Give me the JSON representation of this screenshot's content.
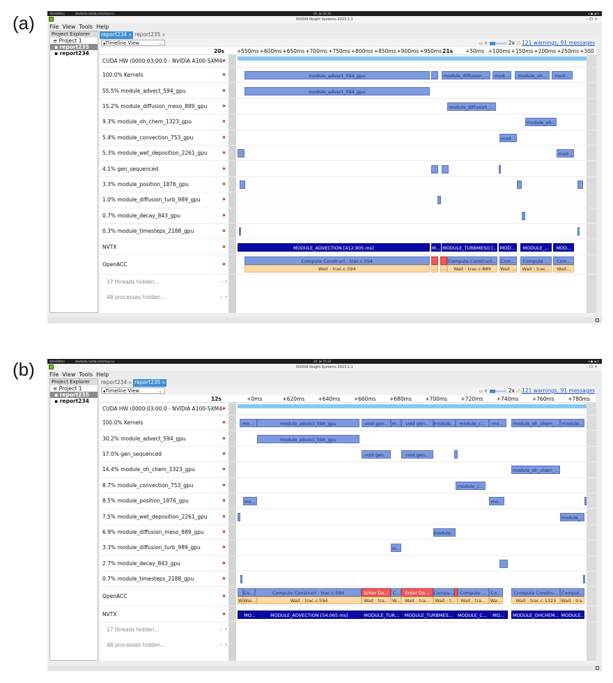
{
  "panels": [
    {
      "label": "(a)",
      "system_bar": {
        "activities": "Aktivitäten",
        "url": "devtools.nvidia.com/nsys-ui",
        "clock": "20. Jul 15:32",
        "window_title": "NVIDIA Nsight Systems 2023.1.1"
      },
      "menu": [
        "File",
        "View",
        "Tools",
        "Help"
      ],
      "explorer": {
        "tab": "Project Explorer",
        "items": [
          "Project 1",
          "report235",
          "report234"
        ],
        "selected": 1
      },
      "report_tabs": [
        {
          "label": "report234",
          "active": true
        },
        {
          "label": "report235",
          "active": false
        }
      ],
      "view": "Timeline View",
      "zoom": "2x",
      "warnings": "121 warnings, 91 messages",
      "ruler": [
        {
          "text": "20s",
          "major": true
        },
        {
          "text": "+550ms"
        },
        {
          "text": "+600ms"
        },
        {
          "text": "+650ms"
        },
        {
          "text": "+700ms"
        },
        {
          "text": "+750ms"
        },
        {
          "text": "+800ms"
        },
        {
          "text": "+850ms"
        },
        {
          "text": "+900ms"
        },
        {
          "text": "+950ms"
        },
        {
          "text": "21s",
          "major": true
        },
        {
          "text": "+50ms"
        },
        {
          "text": "+100ms"
        },
        {
          "text": "+150ms"
        },
        {
          "text": "+200ms"
        },
        {
          "text": "+250ms"
        },
        {
          "text": "+300"
        }
      ],
      "rows": [
        {
          "label": "CUDA HW (0000:03:00.0 - NVIDIA A100-SXM4-"
        },
        {
          "label": "100.0% Kernels",
          "bars": [
            {
              "s": 0.02,
              "e": 0.55,
              "t": "module_advect_594_gpu",
              "c": "k"
            },
            {
              "s": 0.555,
              "e": 0.575,
              "t": "",
              "c": "k"
            },
            {
              "s": 0.585,
              "e": 0.725,
              "t": "module_diffusion_...",
              "c": "k"
            },
            {
              "s": 0.73,
              "e": 0.785,
              "t": "mod...",
              "c": "k"
            },
            {
              "s": 0.795,
              "e": 0.895,
              "t": "module_oh...",
              "c": "k"
            },
            {
              "s": 0.9,
              "e": 0.96,
              "t": "mod...",
              "c": "k"
            }
          ]
        },
        {
          "label": "55.5% module_advect_594_gpu",
          "bars": [
            {
              "s": 0.02,
              "e": 0.55,
              "t": "module_advect_594_gpu",
              "c": "k"
            }
          ]
        },
        {
          "label": "15.2% module_diffusion_meso_889_gpu",
          "bars": [
            {
              "s": 0.6,
              "e": 0.74,
              "t": "module_diffusion_...",
              "c": "k"
            }
          ]
        },
        {
          "label": "9.3% module_oh_chem_1323_gpu",
          "bars": [
            {
              "s": 0.825,
              "e": 0.915,
              "t": "module_oh...",
              "c": "k"
            }
          ]
        },
        {
          "label": "5.4% module_convection_753_gpu",
          "bars": [
            {
              "s": 0.75,
              "e": 0.8,
              "t": "mod...",
              "c": "k"
            }
          ]
        },
        {
          "label": "5.3% module_wet_deposition_2261_gpu",
          "bars": [
            {
              "s": 0.0,
              "e": 0.02,
              "t": "",
              "c": "k"
            },
            {
              "s": 0.915,
              "e": 0.965,
              "t": "mod...",
              "c": "k"
            }
          ]
        },
        {
          "label": "4.1% gen_sequenced",
          "bars": [
            {
              "s": 0.555,
              "e": 0.575,
              "t": "",
              "c": "k"
            },
            {
              "s": 0.585,
              "e": 0.605,
              "t": "",
              "c": "k"
            },
            {
              "s": 0.748,
              "e": 0.752,
              "t": "",
              "c": "k"
            }
          ]
        },
        {
          "label": "3.3% module_position_1876_gpu",
          "bars": [
            {
              "s": 0.005,
              "e": 0.022,
              "t": "",
              "c": "k"
            },
            {
              "s": 0.8,
              "e": 0.815,
              "t": "",
              "c": "k"
            },
            {
              "s": 0.975,
              "e": 0.99,
              "t": "",
              "c": "k"
            }
          ]
        },
        {
          "label": "1.0% module_diffusion_turb_989_gpu",
          "bars": [
            {
              "s": 0.572,
              "e": 0.583,
              "t": "",
              "c": "k"
            }
          ]
        },
        {
          "label": "0.7% module_decay_843_gpu",
          "bars": [
            {
              "s": 0.815,
              "e": 0.825,
              "t": "",
              "c": "k"
            }
          ]
        },
        {
          "label": "0.3% module_timesteps_2188_gpu",
          "bars": [
            {
              "s": 0.004,
              "e": 0.008,
              "t": "",
              "c": "k"
            },
            {
              "s": 0.975,
              "e": 0.979,
              "t": "",
              "c": "k"
            }
          ]
        },
        {
          "label": "NVTX",
          "bars": [
            {
              "s": 0.0,
              "e": 0.55,
              "t": "MODULE_ADVECTION [412.905 ms]",
              "c": "nvtx"
            },
            {
              "s": 0.555,
              "e": 0.583,
              "t": "M...",
              "c": "nvtx"
            },
            {
              "s": 0.585,
              "e": 0.745,
              "t": "MODULE_TURBMESO [...",
              "c": "nvtx"
            },
            {
              "s": 0.748,
              "e": 0.8,
              "t": "MOD...",
              "c": "nvtx"
            },
            {
              "s": 0.81,
              "e": 0.9,
              "t": "MODULE_...",
              "c": "nvtx"
            },
            {
              "s": 0.905,
              "e": 0.965,
              "t": "MOD...",
              "c": "nvtx"
            }
          ]
        },
        {
          "label": "OpenACC",
          "bars": [
            {
              "s": 0.02,
              "e": 0.55,
              "t": "Compute Construct : trac.c:594",
              "c": "comp"
            },
            {
              "s": 0.555,
              "e": 0.575,
              "t": "",
              "c": "red"
            },
            {
              "s": 0.58,
              "e": 0.6,
              "t": "",
              "c": "red"
            },
            {
              "s": 0.6,
              "e": 0.745,
              "t": "Compute Construct...",
              "c": "comp"
            },
            {
              "s": 0.75,
              "e": 0.8,
              "t": "Com...",
              "c": "comp"
            },
            {
              "s": 0.81,
              "e": 0.9,
              "t": "Compute ...",
              "c": "comp"
            },
            {
              "s": 0.905,
              "e": 0.965,
              "t": "Com...",
              "c": "comp"
            }
          ],
          "wait": [
            {
              "s": 0.02,
              "e": 0.55,
              "t": "Wait : trac.c:594",
              "c": "wait"
            },
            {
              "s": 0.555,
              "e": 0.575,
              "t": "...",
              "c": "wait"
            },
            {
              "s": 0.58,
              "e": 0.6,
              "t": "...",
              "c": "wait"
            },
            {
              "s": 0.6,
              "e": 0.745,
              "t": "Wait : trac.c:889",
              "c": "wait"
            },
            {
              "s": 0.75,
              "e": 0.8,
              "t": "Wait ...",
              "c": "wait"
            },
            {
              "s": 0.81,
              "e": 0.9,
              "t": "Wait : trac...",
              "c": "wait"
            },
            {
              "s": 0.905,
              "e": 0.965,
              "t": "Wait...",
              "c": "wait"
            }
          ]
        },
        {
          "label": "17 threads hidden...",
          "dim": true
        },
        {
          "label": "48 processes hidden...",
          "dim": true
        }
      ]
    },
    {
      "label": "(b)",
      "system_bar": {
        "activities": "Aktivitäten",
        "url": "devtools.nvidia.com/nsys-ui",
        "clock": "20. Jul 15:33",
        "window_title": "NVIDIA Nsight Systems 2023.1.1"
      },
      "menu": [
        "File",
        "View",
        "Tools",
        "Help"
      ],
      "explorer": {
        "tab": "Project Explorer",
        "items": [
          "Project 1",
          "report235",
          "report234"
        ],
        "selected": 1
      },
      "report_tabs": [
        {
          "label": "report234",
          "active": false
        },
        {
          "label": "report235",
          "active": true
        }
      ],
      "view": "Timeline View",
      "zoom": "2x",
      "warnings": "121 warnings, 91 messages",
      "ruler": [
        {
          "text": "12s",
          "major": true
        },
        {
          "text": "+0ms"
        },
        {
          "text": "+620ms"
        },
        {
          "text": "+640ms"
        },
        {
          "text": "+660ms"
        },
        {
          "text": "+680ms"
        },
        {
          "text": "+700ms"
        },
        {
          "text": "+720ms"
        },
        {
          "text": "+740ms"
        },
        {
          "text": "+760ms"
        },
        {
          "text": "+780ms"
        }
      ],
      "rows": [
        {
          "label": "CUDA HW (0000:03:00.0 - NVIDIA A100-SXM4-"
        },
        {
          "label": "100.0% Kernels",
          "bars": [
            {
              "s": 0.005,
              "e": 0.055,
              "t": "mo...",
              "c": "k"
            },
            {
              "s": 0.055,
              "e": 0.35,
              "t": "module_advect_594_gpu",
              "c": "k"
            },
            {
              "s": 0.355,
              "e": 0.44,
              "t": "void gen...",
              "c": "k"
            },
            {
              "s": 0.44,
              "e": 0.47,
              "t": "m...",
              "c": "k"
            },
            {
              "s": 0.47,
              "e": 0.56,
              "t": "void gen...",
              "c": "k"
            },
            {
              "s": 0.56,
              "e": 0.625,
              "t": "module...",
              "c": "k"
            },
            {
              "s": 0.625,
              "e": 0.72,
              "t": "module_c...",
              "c": "k"
            },
            {
              "s": 0.72,
              "e": 0.77,
              "t": "mo...",
              "c": "k"
            },
            {
              "s": 0.785,
              "e": 0.925,
              "t": "module_oh_chem_...",
              "c": "k"
            },
            {
              "s": 0.925,
              "e": 0.995,
              "t": "module...",
              "c": "k"
            }
          ]
        },
        {
          "label": "30.2% module_advect_594_gpu",
          "bars": [
            {
              "s": 0.055,
              "e": 0.35,
              "t": "module_advect_594_gpu",
              "c": "k"
            }
          ]
        },
        {
          "label": "17.0% gen_sequenced",
          "bars": [
            {
              "s": 0.355,
              "e": 0.44,
              "t": "void gen...",
              "c": "k"
            },
            {
              "s": 0.47,
              "e": 0.56,
              "t": "void gen...",
              "c": "k"
            },
            {
              "s": 0.62,
              "e": 0.63,
              "t": "",
              "c": "k"
            }
          ]
        },
        {
          "label": "14.4% module_oh_chem_1323_gpu",
          "bars": [
            {
              "s": 0.785,
              "e": 0.925,
              "t": "module_oh_chem_...",
              "c": "k"
            }
          ]
        },
        {
          "label": "8.7% module_convection_753_gpu",
          "bars": [
            {
              "s": 0.625,
              "e": 0.71,
              "t": "module_c...",
              "c": "k"
            }
          ]
        },
        {
          "label": "8.5% module_position_1876_gpu",
          "bars": [
            {
              "s": 0.015,
              "e": 0.055,
              "t": "mo...",
              "c": "k"
            },
            {
              "s": 0.72,
              "e": 0.765,
              "t": "mo...",
              "c": "k"
            },
            {
              "s": 0.995,
              "e": 1.0,
              "t": "",
              "c": "k"
            }
          ]
        },
        {
          "label": "7.5% module_wet_deposition_2261_gpu",
          "bars": [
            {
              "s": 0.0,
              "e": 0.008,
              "t": "",
              "c": "k"
            },
            {
              "s": 0.925,
              "e": 0.995,
              "t": "module_...",
              "c": "k"
            }
          ]
        },
        {
          "label": "6.9% module_diffusion_meso_889_gpu",
          "bars": [
            {
              "s": 0.56,
              "e": 0.625,
              "t": "module...",
              "c": "k"
            }
          ]
        },
        {
          "label": "3.3% module_diffusion_turb_989_gpu",
          "bars": [
            {
              "s": 0.44,
              "e": 0.47,
              "t": "m...",
              "c": "k"
            }
          ]
        },
        {
          "label": "2.7% module_decay_843_gpu",
          "bars": [
            {
              "s": 0.75,
              "e": 0.775,
              "t": "",
              "c": "k"
            }
          ]
        },
        {
          "label": "0.7% module_timesteps_2188_gpu",
          "bars": [
            {
              "s": 0.008,
              "e": 0.014,
              "t": "",
              "c": "k"
            },
            {
              "s": 0.99,
              "e": 0.996,
              "t": "",
              "c": "k"
            }
          ]
        },
        {
          "label": "OpenACC",
          "bars": [
            {
              "s": 0.0,
              "e": 0.015,
              "t": "",
              "c": "comp"
            },
            {
              "s": 0.015,
              "e": 0.05,
              "t": "Co...",
              "c": "comp"
            },
            {
              "s": 0.05,
              "e": 0.355,
              "t": "Compute Construct : trac.c:594",
              "c": "comp"
            },
            {
              "s": 0.355,
              "e": 0.44,
              "t": "Enter Da...",
              "c": "red"
            },
            {
              "s": 0.44,
              "e": 0.47,
              "t": "C...",
              "c": "comp"
            },
            {
              "s": 0.47,
              "e": 0.56,
              "t": "Enter Da...",
              "c": "red"
            },
            {
              "s": 0.56,
              "e": 0.62,
              "t": "Compu...",
              "c": "comp"
            },
            {
              "s": 0.62,
              "e": 0.63,
              "t": "",
              "c": "red"
            },
            {
              "s": 0.63,
              "e": 0.72,
              "t": "Compute ...",
              "c": "comp"
            },
            {
              "s": 0.72,
              "e": 0.76,
              "t": "Co...",
              "c": "comp"
            },
            {
              "s": 0.785,
              "e": 0.925,
              "t": "Compute Constru...",
              "c": "comp"
            },
            {
              "s": 0.925,
              "e": 0.995,
              "t": "Comput...",
              "c": "comp"
            }
          ],
          "wait": [
            {
              "s": 0.0,
              "e": 0.015,
              "t": "W...",
              "c": "wait"
            },
            {
              "s": 0.015,
              "e": 0.055,
              "t": "Wai...",
              "c": "wait"
            },
            {
              "s": 0.055,
              "e": 0.355,
              "t": "Wait : trac.c:594",
              "c": "wait"
            },
            {
              "s": 0.355,
              "e": 0.44,
              "t": "Wait : tra...",
              "c": "wait"
            },
            {
              "s": 0.44,
              "e": 0.47,
              "t": "W...",
              "c": "wait"
            },
            {
              "s": 0.47,
              "e": 0.56,
              "t": "Wait : tra...",
              "c": "wait"
            },
            {
              "s": 0.56,
              "e": 0.63,
              "t": "Wait : t...",
              "c": "wait"
            },
            {
              "s": 0.63,
              "e": 0.72,
              "t": "Wait : tra...",
              "c": "wait"
            },
            {
              "s": 0.72,
              "e": 0.76,
              "t": "Wa...",
              "c": "wait"
            },
            {
              "s": 0.785,
              "e": 0.925,
              "t": "Wait : trac.c:1323",
              "c": "wait"
            },
            {
              "s": 0.925,
              "e": 0.995,
              "t": "Wait : tra...",
              "c": "wait"
            }
          ]
        },
        {
          "label": "NVTX",
          "bars": [
            {
              "s": 0.0,
              "e": 0.015,
              "t": "",
              "c": "nvtx"
            },
            {
              "s": 0.015,
              "e": 0.055,
              "t": "MO...",
              "c": "nvtx"
            },
            {
              "s": 0.055,
              "e": 0.355,
              "t": "MODULE_ADVECTION [54.065 ms]",
              "c": "nvtx"
            },
            {
              "s": 0.355,
              "e": 0.47,
              "t": "MODULE_TUR...",
              "c": "nvtx"
            },
            {
              "s": 0.47,
              "e": 0.625,
              "t": "MODULE_TURBMES...",
              "c": "nvtx"
            },
            {
              "s": 0.625,
              "e": 0.72,
              "t": "MODULE_C...",
              "c": "nvtx"
            },
            {
              "s": 0.72,
              "e": 0.775,
              "t": "MO...",
              "c": "nvtx"
            },
            {
              "s": 0.785,
              "e": 0.925,
              "t": "MODULE_OHCHEM...",
              "c": "nvtx"
            },
            {
              "s": 0.925,
              "e": 0.995,
              "t": "MODULE...",
              "c": "nvtx"
            }
          ]
        },
        {
          "label": "17 threads hidden...",
          "dim": true
        },
        {
          "label": "48 processes hidden...",
          "dim": true
        }
      ]
    }
  ]
}
